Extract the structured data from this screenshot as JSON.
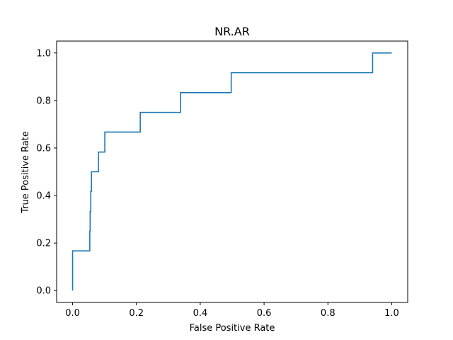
{
  "chart_data": {
    "type": "line",
    "title": "NR.AR",
    "xlabel": "False Positive Rate",
    "ylabel": "True Positive Rate",
    "xlim": [
      -0.05,
      1.05
    ],
    "ylim": [
      -0.05,
      1.05
    ],
    "xticks": [
      0.0,
      0.2,
      0.4,
      0.6,
      0.8,
      1.0
    ],
    "yticks": [
      0.0,
      0.2,
      0.4,
      0.6,
      0.8,
      1.0
    ],
    "xtick_labels": [
      "0.0",
      "0.2",
      "0.4",
      "0.6",
      "0.8",
      "1.0"
    ],
    "ytick_labels": [
      "0.0",
      "0.2",
      "0.4",
      "0.6",
      "0.8",
      "1.0"
    ],
    "grid": false,
    "legend": null,
    "series": [
      {
        "color": "#1f77b4",
        "x": [
          0.0,
          0.0,
          0.0,
          0.054,
          0.054,
          0.055,
          0.055,
          0.057,
          0.057,
          0.059,
          0.059,
          0.081,
          0.081,
          0.101,
          0.101,
          0.212,
          0.212,
          0.338,
          0.338,
          0.497,
          0.497,
          0.94,
          0.94,
          1.0
        ],
        "y": [
          0.0,
          0.0,
          0.167,
          0.167,
          0.25,
          0.25,
          0.333,
          0.333,
          0.417,
          0.417,
          0.5,
          0.5,
          0.583,
          0.583,
          0.667,
          0.667,
          0.75,
          0.75,
          0.833,
          0.833,
          0.917,
          0.917,
          1.0,
          1.0
        ]
      }
    ]
  }
}
